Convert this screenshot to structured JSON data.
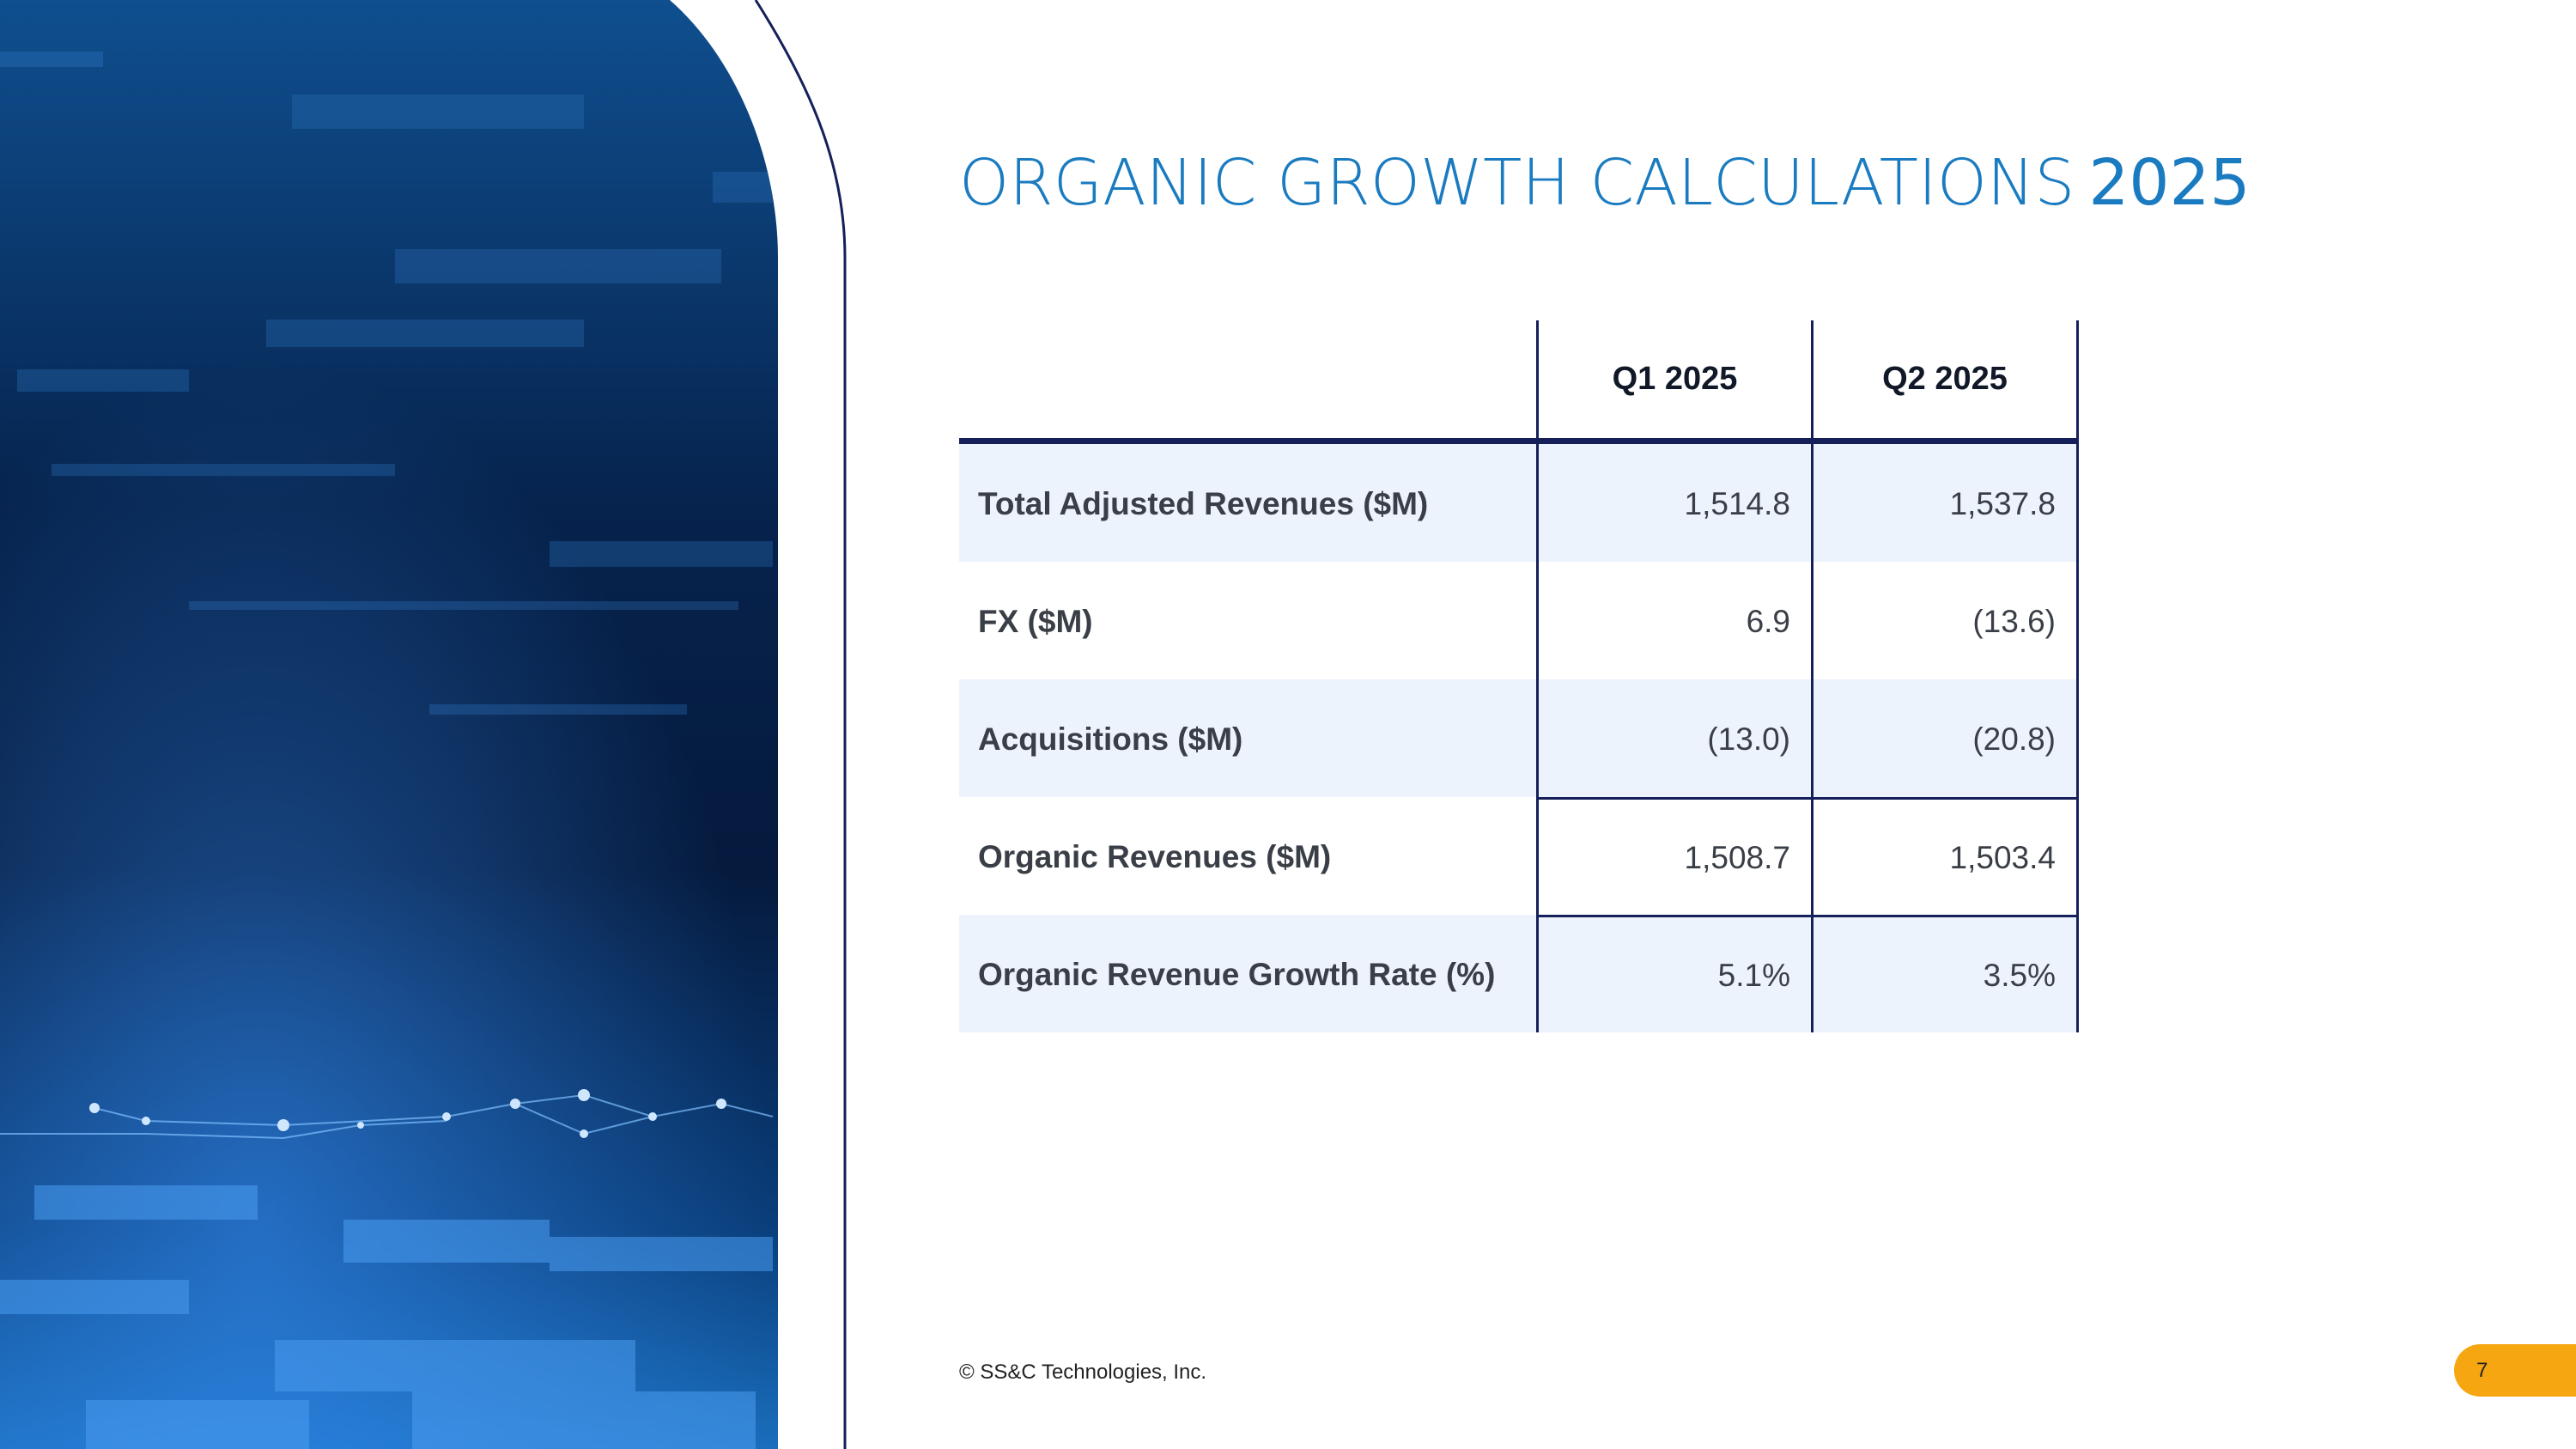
{
  "slide": {
    "title": "ORGANIC GROWTH CALCULATIONS",
    "title_year": "2025",
    "footer": "© SS&C Technologies, Inc.",
    "page_number": "7"
  },
  "table": {
    "columns": [
      "",
      "Q1 2025",
      "Q2 2025"
    ],
    "rows": [
      {
        "label": "Total Adjusted Revenues ($M)",
        "q1": "1,514.8",
        "q2": "1,537.8"
      },
      {
        "label": "FX ($M)",
        "q1": "6.9",
        "q2": "(13.6)"
      },
      {
        "label": "Acquisitions ($M)",
        "q1": "(13.0)",
        "q2": "(20.8)"
      },
      {
        "label": "Organic Revenues ($M)",
        "q1": "1,508.7",
        "q2": "1,503.4"
      },
      {
        "label": "Organic Revenue Growth Rate (%)",
        "q1": "5.1%",
        "q2": "3.5%"
      }
    ]
  },
  "colors": {
    "title_blue": "#1a7bc0",
    "rule_navy": "#15205a",
    "band_blue": "#ecf3fd",
    "badge_orange": "#f5a611"
  }
}
